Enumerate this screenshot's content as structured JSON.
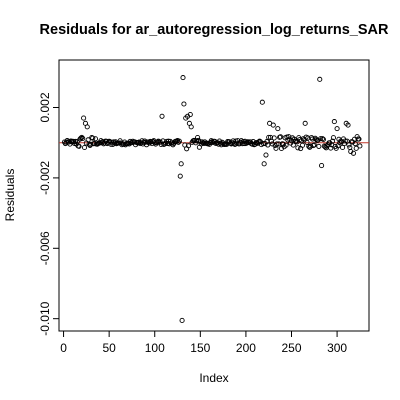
{
  "chart_data": {
    "type": "scatter",
    "title": "Residuals for ar_autoregression_log_returns_SAR",
    "xlabel": "Index",
    "ylabel": "Residuals",
    "xlim": [
      -5,
      335
    ],
    "ylim": [
      -0.0107,
      0.0047
    ],
    "xticks": [
      0,
      50,
      100,
      150,
      200,
      250,
      300
    ],
    "xtick_labels": [
      "0",
      "50",
      "100",
      "150",
      "200",
      "250",
      "300"
    ],
    "yticks": [
      -0.01,
      -0.006,
      -0.002,
      0.002
    ],
    "ytick_labels": [
      "-0.010",
      "-0.006",
      "-0.002",
      "0.002"
    ],
    "reference_line": {
      "y": 0.0,
      "color": "#c0392b"
    },
    "grid": false,
    "point_style": "open-circle",
    "highlight_points": [
      {
        "x": 20,
        "y": 0.0003
      },
      {
        "x": 22,
        "y": 0.0014
      },
      {
        "x": 24,
        "y": 0.0011
      },
      {
        "x": 26,
        "y": 0.0009
      },
      {
        "x": 108,
        "y": 0.0015
      },
      {
        "x": 128,
        "y": -0.0019
      },
      {
        "x": 129,
        "y": -0.0012
      },
      {
        "x": 131,
        "y": 0.0037
      },
      {
        "x": 132,
        "y": 0.0022
      },
      {
        "x": 130,
        "y": -0.0101
      },
      {
        "x": 134,
        "y": 0.0014
      },
      {
        "x": 136,
        "y": 0.0015
      },
      {
        "x": 138,
        "y": 0.0011
      },
      {
        "x": 139,
        "y": 0.0016
      },
      {
        "x": 140,
        "y": 0.0009
      },
      {
        "x": 218,
        "y": 0.0023
      },
      {
        "x": 220,
        "y": -0.0012
      },
      {
        "x": 222,
        "y": -0.0007
      },
      {
        "x": 226,
        "y": 0.0011
      },
      {
        "x": 230,
        "y": 0.001
      },
      {
        "x": 235,
        "y": 0.0008
      },
      {
        "x": 265,
        "y": 0.0011
      },
      {
        "x": 281,
        "y": 0.0036
      },
      {
        "x": 283,
        "y": -0.0013
      },
      {
        "x": 297,
        "y": 0.0012
      },
      {
        "x": 300,
        "y": 0.0008
      },
      {
        "x": 310,
        "y": 0.0011
      },
      {
        "x": 312,
        "y": 0.001
      },
      {
        "x": 315,
        "y": -0.0005
      },
      {
        "x": 318,
        "y": -0.0006
      }
    ]
  }
}
